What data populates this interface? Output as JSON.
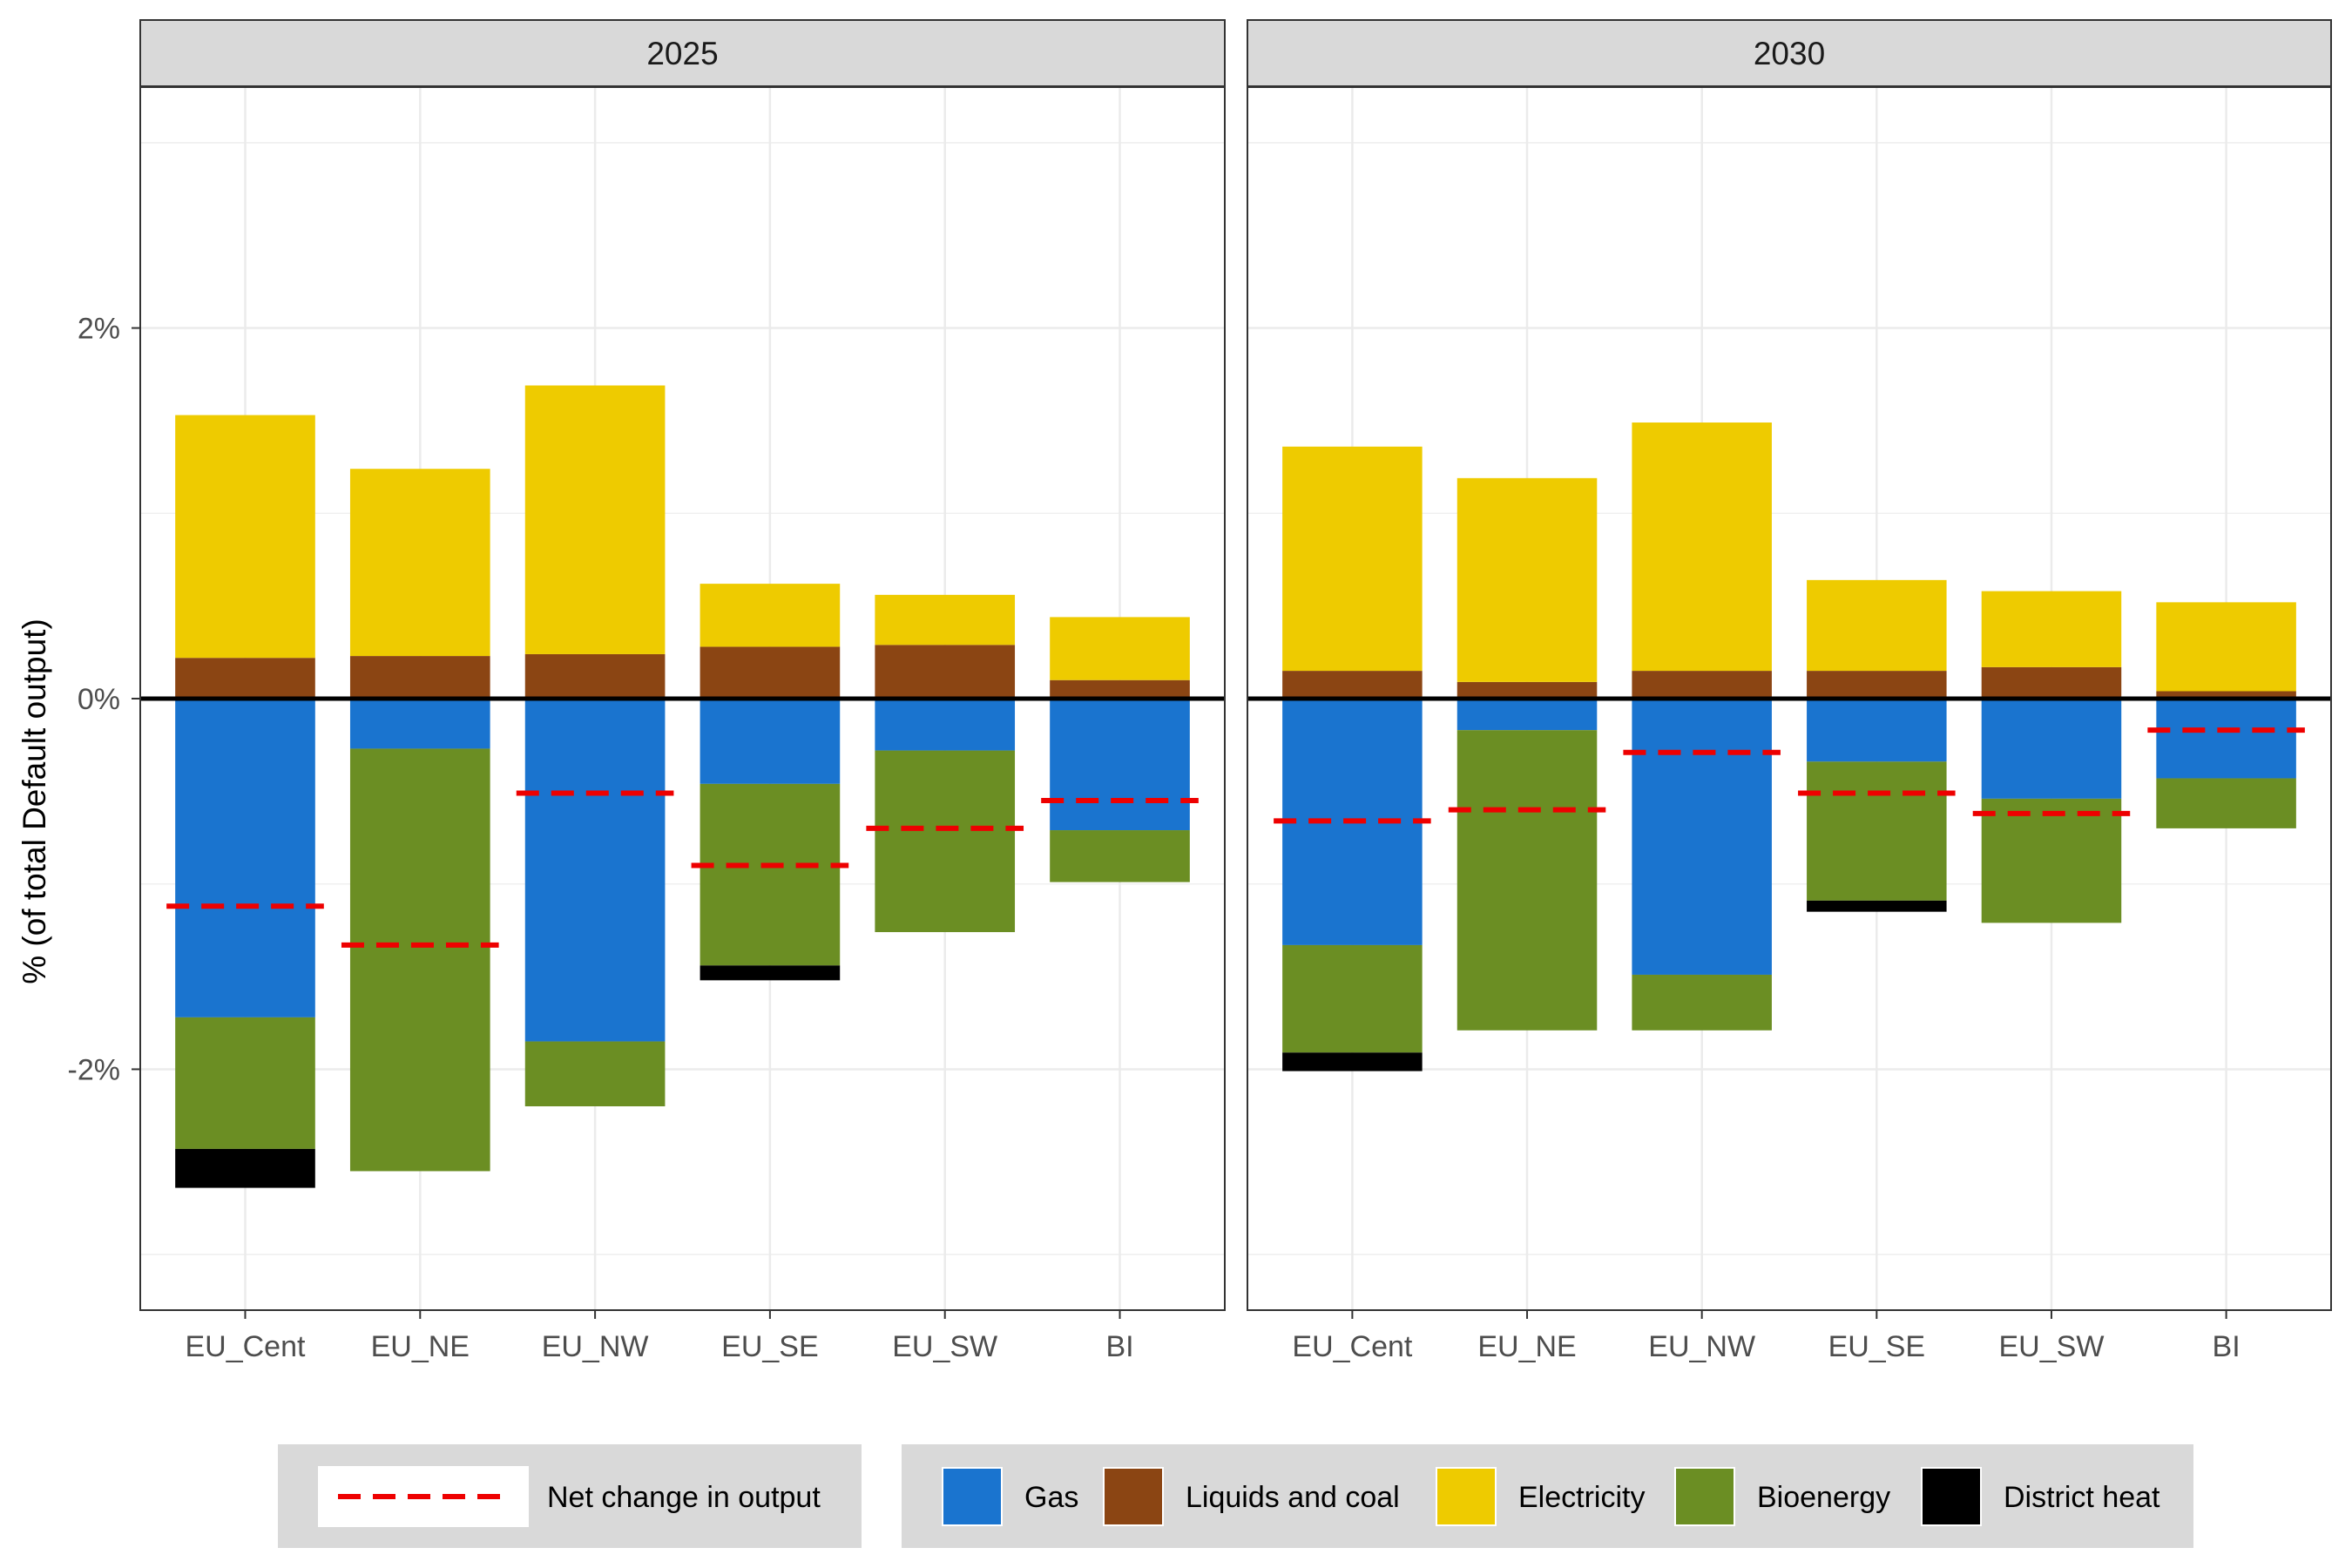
{
  "chart_data": {
    "type": "bar",
    "subtype": "stacked-diverging-bar-with-net-line",
    "ylabel": "% (of total Default output)",
    "xlabel": "",
    "ylim": [
      -3.3,
      3.3
    ],
    "y_ticks": [
      -2,
      0,
      2
    ],
    "y_tick_labels": [
      "-2%",
      "0%",
      "2%"
    ],
    "grid": true,
    "legend_position": "bottom",
    "categories": [
      "EU_Cent",
      "EU_NE",
      "EU_NW",
      "EU_SE",
      "EU_SW",
      "BI"
    ],
    "series_order": [
      "Gas",
      "Liquids and coal",
      "Electricity",
      "Bioenergy",
      "District heat"
    ],
    "colors": {
      "Gas": "#1a74cf",
      "Liquids and coal": "#8b4513",
      "Electricity": "#eecb00",
      "Bioenergy": "#6b8e23",
      "District heat": "#000000",
      "Net change in output": "#ee0000"
    },
    "panels": [
      {
        "title": "2025",
        "series": [
          {
            "name": "Gas",
            "values": [
              -1.72,
              -0.27,
              -1.85,
              -0.46,
              -0.28,
              -0.71
            ]
          },
          {
            "name": "Liquids and coal",
            "values": [
              0.22,
              0.23,
              0.24,
              0.28,
              0.29,
              0.1
            ]
          },
          {
            "name": "Electricity",
            "values": [
              1.31,
              1.01,
              1.45,
              0.34,
              0.27,
              0.34
            ]
          },
          {
            "name": "Bioenergy",
            "values": [
              -0.71,
              -2.28,
              -0.35,
              -0.98,
              -0.98,
              -0.28
            ]
          },
          {
            "name": "District heat",
            "values": [
              -0.21,
              0,
              0,
              -0.08,
              0,
              0
            ]
          }
        ],
        "net_change": [
          -1.12,
          -1.33,
          -0.51,
          -0.9,
          -0.7,
          -0.55
        ]
      },
      {
        "title": "2030",
        "series": [
          {
            "name": "Gas",
            "values": [
              -1.33,
              -0.17,
              -1.49,
              -0.34,
              -0.54,
              -0.43
            ]
          },
          {
            "name": "Liquids and coal",
            "values": [
              0.15,
              0.09,
              0.15,
              0.15,
              0.17,
              0.04
            ]
          },
          {
            "name": "Electricity",
            "values": [
              1.21,
              1.1,
              1.34,
              0.49,
              0.41,
              0.48
            ]
          },
          {
            "name": "Bioenergy",
            "values": [
              -0.58,
              -1.62,
              -0.3,
              -0.75,
              -0.67,
              -0.27
            ]
          },
          {
            "name": "District heat",
            "values": [
              -0.1,
              0,
              0,
              -0.06,
              0,
              0
            ]
          }
        ],
        "net_change": [
          -0.66,
          -0.6,
          -0.29,
          -0.51,
          -0.62,
          -0.17
        ]
      }
    ]
  },
  "legend": {
    "line_label": "Net change in output",
    "fill_labels": [
      "Gas",
      "Liquids and coal",
      "Electricity",
      "Bioenergy",
      "District heat"
    ]
  }
}
